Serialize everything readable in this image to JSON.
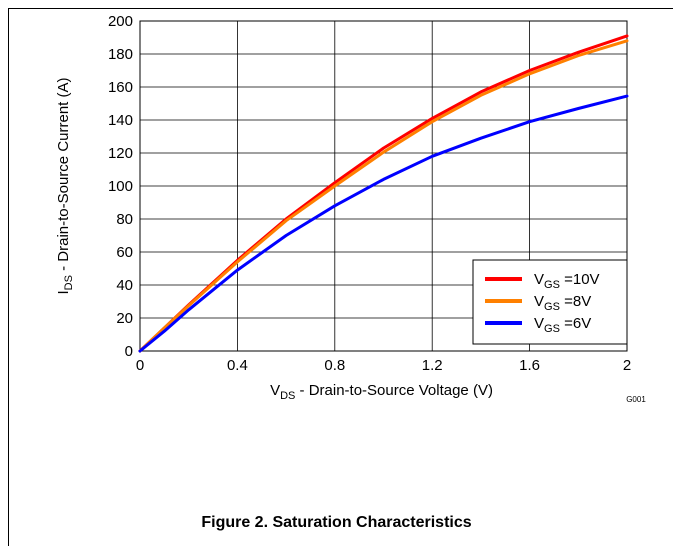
{
  "chart_data": {
    "type": "line",
    "x_axis": {
      "label_main": "V",
      "label_sub": "DS",
      "label_rest": " - Drain-to-Source Voltage (V)",
      "range": [
        0,
        2
      ],
      "ticks": [
        0,
        0.4,
        0.8,
        1.2,
        1.6,
        2
      ],
      "tick_labels": [
        "0",
        "0.4",
        "0.8",
        "1.2",
        "1.6",
        "2"
      ]
    },
    "y_axis": {
      "label_main": "I",
      "label_sub": "DS",
      "label_rest": " - Drain-to-Source Current (A)",
      "range": [
        0,
        200
      ],
      "ticks": [
        0,
        20,
        40,
        60,
        80,
        100,
        120,
        140,
        160,
        180,
        200
      ],
      "tick_labels": [
        "0",
        "20",
        "40",
        "60",
        "80",
        "100",
        "120",
        "140",
        "160",
        "180",
        "200"
      ]
    },
    "grid": true,
    "legend_position": "bottom-right",
    "series": [
      {
        "name_main": "V",
        "name_sub": "GS",
        "name_rest": " =10V",
        "color": "#ff0000",
        "x": [
          0,
          0.1,
          0.2,
          0.4,
          0.6,
          0.8,
          1.0,
          1.2,
          1.4,
          1.6,
          1.8,
          2.0
        ],
        "y": [
          0,
          14,
          28,
          55,
          80,
          102,
          123,
          141,
          157,
          170,
          181,
          191
        ]
      },
      {
        "name_main": "V",
        "name_sub": "GS",
        "name_rest": " =8V",
        "color": "#ff8000",
        "x": [
          0,
          0.1,
          0.2,
          0.4,
          0.6,
          0.8,
          1.0,
          1.2,
          1.4,
          1.6,
          1.8,
          2.0
        ],
        "y": [
          0,
          14,
          27.5,
          54,
          79,
          100,
          120.5,
          139,
          155,
          168,
          179,
          188
        ]
      },
      {
        "name_main": "V",
        "name_sub": "GS",
        "name_rest": " =6V",
        "color": "#0000ff",
        "x": [
          0,
          0.1,
          0.2,
          0.4,
          0.6,
          0.8,
          1.0,
          1.2,
          1.4,
          1.6,
          1.8,
          2.0
        ],
        "y": [
          0,
          12,
          25,
          49,
          70,
          88,
          104,
          118,
          129,
          139,
          147,
          154.5
        ]
      }
    ],
    "code_label": "G001",
    "caption": "Figure 2. Saturation Characteristics"
  }
}
